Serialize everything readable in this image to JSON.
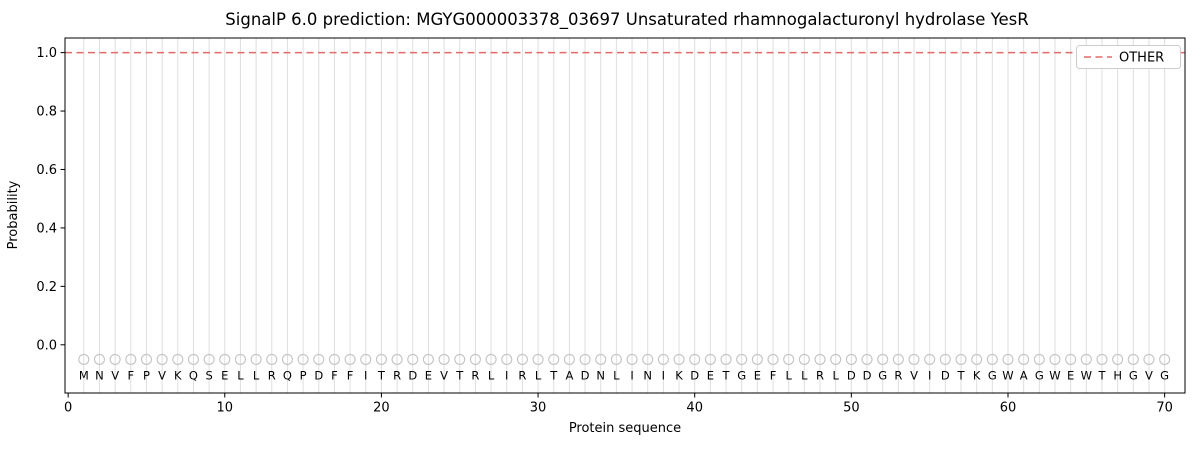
{
  "chart_data": {
    "type": "line",
    "title": "SignalP 6.0 prediction: MGYG000003378_03697 Unsaturated rhamnogalacturonyl hydrolase YesR",
    "xlabel": "Protein sequence",
    "ylabel": "Probability",
    "xlim": [
      -0.2,
      71.3
    ],
    "ylim": [
      -0.165,
      1.05
    ],
    "xtick_values": [
      0,
      10,
      20,
      30,
      40,
      50,
      60,
      70
    ],
    "xtick_labels": [
      "0",
      "10",
      "20",
      "30",
      "40",
      "50",
      "60",
      "70"
    ],
    "ytick_values": [
      0.0,
      0.2,
      0.4,
      0.6,
      0.8,
      1.0
    ],
    "ytick_labels": [
      "0.0",
      "0.2",
      "0.4",
      "0.6",
      "0.8",
      "1.0"
    ],
    "grid": "vertical-line-per-residue",
    "legend": {
      "position": "upper right",
      "entries": [
        {
          "label": "OTHER",
          "color": "#e36a6a",
          "linestyle": "dashed"
        }
      ]
    },
    "series": [
      {
        "name": "OTHER",
        "type": "constant-line",
        "y": 1.0,
        "color": "#e36a6a",
        "linestyle": "dashed",
        "x_start": 1,
        "x_end": 70
      }
    ],
    "sequence": [
      "M",
      "N",
      "V",
      "F",
      "P",
      "V",
      "K",
      "Q",
      "S",
      "E",
      "L",
      "L",
      "R",
      "Q",
      "P",
      "D",
      "F",
      "F",
      "I",
      "T",
      "R",
      "D",
      "E",
      "V",
      "T",
      "R",
      "L",
      "I",
      "R",
      "L",
      "T",
      "A",
      "D",
      "N",
      "L",
      "I",
      "N",
      "I",
      "K",
      "D",
      "E",
      "T",
      "G",
      "E",
      "F",
      "L",
      "L",
      "R",
      "L",
      "D",
      "D",
      "G",
      "R",
      "V",
      "I",
      "D",
      "T",
      "K",
      "G",
      "W",
      "A",
      "G",
      "W",
      "E",
      "W",
      "T",
      "H",
      "G",
      "V",
      "G"
    ],
    "residue_markers": {
      "shape": "open-circle",
      "y": -0.05,
      "color": "#c4c4c4"
    },
    "colors": {
      "grid": "#dedede",
      "spine": "#000000",
      "tick_text": "#000000",
      "residue_text": "#1a1a1a",
      "background": "#ffffff",
      "legend_border": "#cccccc"
    }
  }
}
